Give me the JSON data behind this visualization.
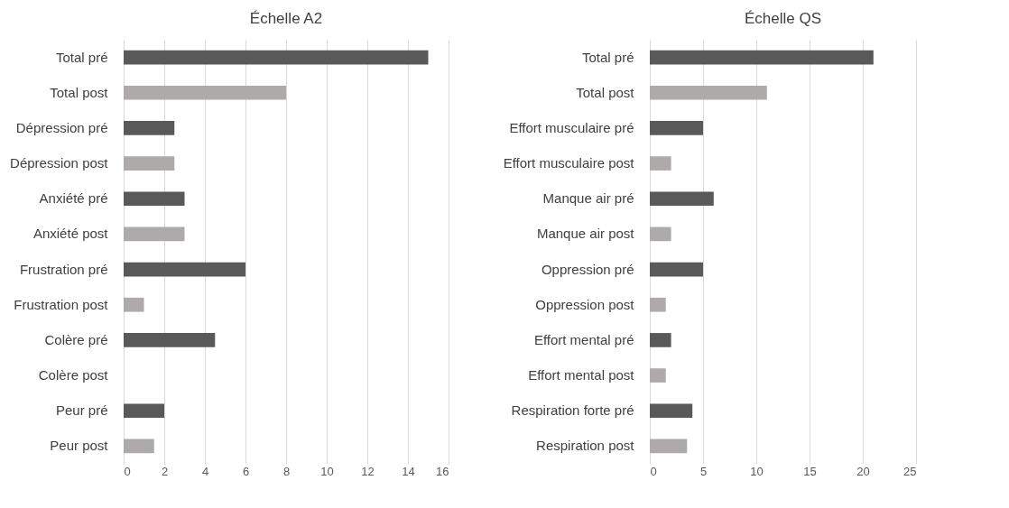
{
  "chart_data": [
    {
      "type": "bar",
      "orientation": "horizontal",
      "title": "Échelle A2",
      "categories": [
        "Total pré",
        "Total post",
        "Dépression pré",
        "Dépression post",
        "Anxiété pré",
        "Anxiété post",
        "Frustration pré",
        "Frustration post",
        "Colère pré",
        "Colère post",
        "Peur pré",
        "Peur post"
      ],
      "values": [
        15,
        8,
        2.5,
        2.5,
        3,
        3,
        6,
        1,
        4.5,
        0,
        2,
        1.5
      ],
      "colors": [
        "#595959",
        "#aeaaaa",
        "#595959",
        "#aeaaaa",
        "#595959",
        "#aeaaaa",
        "#595959",
        "#aeaaaa",
        "#595959",
        "#aeaaaa",
        "#595959",
        "#aeaaaa"
      ],
      "xlim": [
        0,
        16
      ],
      "xticks": [
        0,
        2,
        4,
        6,
        8,
        10,
        12,
        14,
        16
      ],
      "grid": "x"
    },
    {
      "type": "bar",
      "orientation": "horizontal",
      "title": "Échelle QS",
      "categories": [
        "Total pré",
        "Total post",
        "Effort musculaire pré",
        "Effort musculaire post",
        "Manque air pré",
        "Manque air post",
        "Oppression pré",
        "Oppression post",
        "Effort mental pré",
        "Effort mental post",
        "Respiration forte pré",
        "Respiration post"
      ],
      "values": [
        21,
        11,
        5,
        2,
        6,
        2,
        5,
        1.5,
        2,
        1.5,
        4,
        3.5
      ],
      "colors": [
        "#595959",
        "#aeaaaa",
        "#595959",
        "#aeaaaa",
        "#595959",
        "#aeaaaa",
        "#595959",
        "#aeaaaa",
        "#595959",
        "#aeaaaa",
        "#595959",
        "#aeaaaa"
      ],
      "xlim": [
        0,
        25
      ],
      "xticks": [
        0,
        5,
        10,
        15,
        20,
        25
      ],
      "grid": "x"
    }
  ]
}
